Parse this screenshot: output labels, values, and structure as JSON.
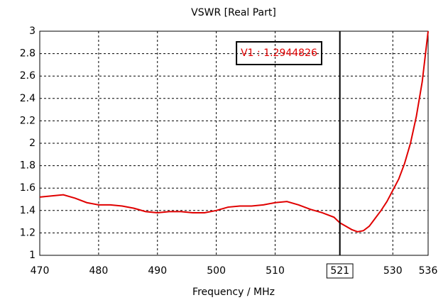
{
  "chart_data": {
    "type": "line",
    "title": "VSWR [Real Part]",
    "x_label": "Frequency / MHz",
    "x": [
      470,
      472,
      474,
      476,
      478,
      480,
      482,
      484,
      486,
      488,
      490,
      492,
      494,
      496,
      498,
      500,
      502,
      504,
      506,
      508,
      510,
      512,
      514,
      516,
      518,
      520,
      521,
      522,
      523,
      524,
      525,
      526,
      527,
      528,
      529,
      530,
      531,
      532,
      533,
      534,
      535,
      536
    ],
    "series": [
      {
        "name": "VSWR",
        "color": "#e00000",
        "values": [
          1.52,
          1.53,
          1.54,
          1.51,
          1.47,
          1.45,
          1.45,
          1.44,
          1.42,
          1.39,
          1.38,
          1.39,
          1.39,
          1.38,
          1.38,
          1.4,
          1.43,
          1.44,
          1.44,
          1.45,
          1.47,
          1.48,
          1.45,
          1.41,
          1.38,
          1.34,
          1.29,
          1.26,
          1.23,
          1.21,
          1.22,
          1.26,
          1.33,
          1.4,
          1.48,
          1.58,
          1.68,
          1.82,
          2.0,
          2.24,
          2.55,
          3.0
        ]
      }
    ],
    "xlim": [
      470,
      536
    ],
    "xticks": [
      470,
      480,
      490,
      500,
      510,
      521,
      530,
      536
    ],
    "ylim": [
      1,
      3
    ],
    "yticks": [
      1,
      1.2,
      1.4,
      1.6,
      1.8,
      2,
      2.2,
      2.4,
      2.6,
      2.8,
      3
    ],
    "grid": true,
    "marker": {
      "x": 521,
      "label": "V1 : 1.2944826",
      "color": "#e00000"
    }
  }
}
